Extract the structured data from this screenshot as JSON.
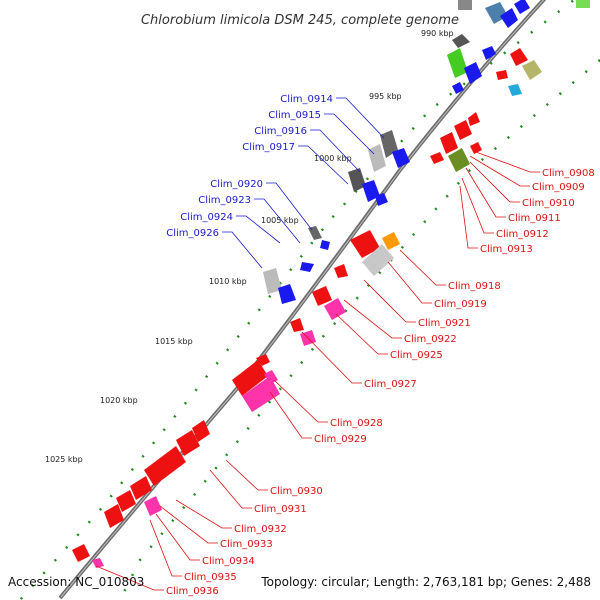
{
  "title": "Chlorobium limicola DSM 245, complete genome",
  "footer": {
    "accession": "Accession: NC_010803",
    "summary": "Topology: circular; Length: 2,763,181 bp; Genes: 2,488"
  },
  "colors": {
    "backbone": "#7a7a7a",
    "label_left": "#1a1acc",
    "label_right": "#dd1111",
    "dots": "#228b22"
  },
  "kbp_ticks": [
    "990 kbp",
    "995 kbp",
    "1000 kbp",
    "1005 kbp",
    "1010 kbp",
    "1015 kbp",
    "1020 kbp",
    "1025 kbp"
  ],
  "left_labels": [
    "Clim_0914",
    "Clim_0915",
    "Clim_0916",
    "Clim_0917",
    "Clim_0920",
    "Clim_0923",
    "Clim_0924",
    "Clim_0926"
  ],
  "right_labels": [
    "Clim_0908",
    "Clim_0909",
    "Clim_0910",
    "Clim_0911",
    "Clim_0912",
    "Clim_0913",
    "Clim_0918",
    "Clim_0919",
    "Clim_0921",
    "Clim_0922",
    "Clim_0925",
    "Clim_0927",
    "Clim_0928",
    "Clim_0929",
    "Clim_0930",
    "Clim_0931",
    "Clim_0932",
    "Clim_0933",
    "Clim_0934",
    "Clim_0935",
    "Clim_0936"
  ]
}
